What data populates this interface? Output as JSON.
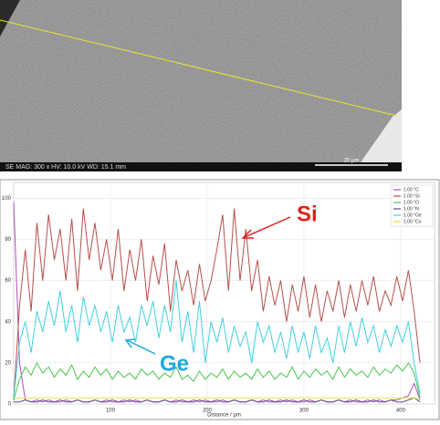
{
  "sem": {
    "caption": "SE MAG: 300 x HV: 10.0 kV WD: 15.1 mm",
    "scale": "20 µm"
  },
  "chart_data": {
    "type": "line",
    "x_label": "Distance / µm",
    "xlim": [
      0,
      435
    ],
    "ylim": [
      0,
      105
    ],
    "xticks": [
      100,
      200,
      300,
      400
    ],
    "yticks": [
      0,
      20,
      40,
      60,
      80,
      100
    ],
    "grid": true,
    "legend": "top-right",
    "annotations": [
      "Si",
      "Ge"
    ],
    "x": [
      0,
      6,
      12,
      18,
      24,
      30,
      36,
      42,
      48,
      54,
      60,
      66,
      72,
      78,
      84,
      90,
      96,
      102,
      108,
      114,
      120,
      126,
      132,
      138,
      144,
      150,
      156,
      162,
      168,
      174,
      180,
      186,
      192,
      198,
      204,
      210,
      216,
      222,
      228,
      234,
      240,
      246,
      252,
      258,
      264,
      270,
      276,
      282,
      288,
      294,
      300,
      306,
      312,
      318,
      324,
      330,
      336,
      342,
      348,
      354,
      360,
      366,
      372,
      378,
      384,
      390,
      396,
      402,
      408,
      414,
      420
    ],
    "series": [
      {
        "name": "1.00 °C",
        "color": "#b04fc0",
        "values": [
          98,
          20,
          2,
          1,
          2,
          1,
          2,
          1,
          1,
          2,
          1,
          2,
          1,
          1,
          2,
          1,
          2,
          1,
          1,
          2,
          1,
          2,
          1,
          2,
          1,
          1,
          2,
          1,
          2,
          1,
          1,
          2,
          1,
          2,
          1,
          1,
          2,
          1,
          2,
          1,
          1,
          2,
          1,
          2,
          1,
          1,
          2,
          1,
          2,
          1,
          1,
          2,
          1,
          2,
          1,
          1,
          2,
          1,
          2,
          1,
          1,
          2,
          1,
          2,
          1,
          2,
          2,
          3,
          4,
          10,
          2
        ]
      },
      {
        "name": "1.00 °Si",
        "color": "#b5504a",
        "values": [
          2,
          48,
          75,
          45,
          88,
          60,
          92,
          70,
          85,
          60,
          90,
          55,
          95,
          70,
          88,
          65,
          80,
          60,
          85,
          55,
          75,
          60,
          80,
          50,
          72,
          58,
          78,
          45,
          70,
          55,
          65,
          48,
          68,
          50,
          60,
          75,
          92,
          55,
          95,
          60,
          85,
          55,
          70,
          45,
          62,
          48,
          60,
          40,
          58,
          45,
          62,
          42,
          58,
          40,
          55,
          45,
          60,
          42,
          58,
          45,
          60,
          48,
          62,
          45,
          55,
          48,
          62,
          50,
          65,
          45,
          20
        ]
      },
      {
        "name": "1.00 °O",
        "color": "#4cc44c",
        "values": [
          2,
          12,
          18,
          14,
          20,
          15,
          18,
          13,
          17,
          14,
          19,
          12,
          16,
          13,
          18,
          14,
          17,
          12,
          16,
          13,
          15,
          12,
          17,
          14,
          16,
          12,
          15,
          13,
          18,
          12,
          14,
          11,
          16,
          12,
          15,
          13,
          17,
          12,
          16,
          13,
          15,
          12,
          17,
          13,
          16,
          12,
          15,
          13,
          18,
          12,
          16,
          13,
          17,
          14,
          16,
          12,
          18,
          13,
          17,
          14,
          16,
          13,
          18,
          14,
          17,
          15,
          19,
          16,
          20,
          15,
          3
        ]
      },
      {
        "name": "1.00 °N",
        "color": "#5a4a8a",
        "values": [
          1,
          1,
          2,
          1,
          1,
          2,
          1,
          1,
          2,
          1,
          1,
          2,
          1,
          1,
          2,
          1,
          1,
          2,
          1,
          1,
          2,
          1,
          1,
          2,
          1,
          1,
          2,
          1,
          1,
          2,
          1,
          1,
          2,
          1,
          1,
          2,
          1,
          1,
          2,
          1,
          1,
          2,
          1,
          1,
          2,
          1,
          1,
          2,
          1,
          1,
          2,
          1,
          1,
          2,
          1,
          1,
          2,
          1,
          1,
          2,
          1,
          1,
          2,
          1,
          1,
          2,
          1,
          1,
          2,
          3,
          1
        ]
      },
      {
        "name": "1.00 °Ge",
        "color": "#40d0e0",
        "values": [
          3,
          30,
          40,
          25,
          45,
          35,
          50,
          38,
          55,
          35,
          48,
          30,
          52,
          38,
          48,
          35,
          45,
          30,
          48,
          35,
          42,
          30,
          48,
          38,
          50,
          32,
          48,
          35,
          60,
          30,
          45,
          25,
          50,
          20,
          40,
          30,
          42,
          25,
          38,
          28,
          35,
          20,
          40,
          30,
          38,
          25,
          35,
          22,
          38,
          25,
          35,
          22,
          38,
          25,
          32,
          20,
          38,
          25,
          40,
          28,
          42,
          30,
          38,
          25,
          36,
          28,
          38,
          30,
          40,
          20,
          5
        ]
      },
      {
        "name": "1.00 °Co",
        "color": "#e6e04a",
        "values": [
          2,
          3,
          3,
          3,
          3,
          3,
          3,
          3,
          3,
          3,
          3,
          3,
          3,
          3,
          3,
          3,
          3,
          3,
          3,
          3,
          3,
          3,
          3,
          3,
          3,
          3,
          3,
          3,
          3,
          3,
          3,
          3,
          3,
          3,
          3,
          3,
          3,
          3,
          3,
          3,
          3,
          3,
          3,
          3,
          3,
          3,
          3,
          3,
          3,
          3,
          3,
          3,
          3,
          3,
          3,
          3,
          3,
          3,
          3,
          3,
          3,
          3,
          3,
          3,
          3,
          3,
          3,
          3,
          3,
          3,
          2
        ]
      }
    ]
  }
}
